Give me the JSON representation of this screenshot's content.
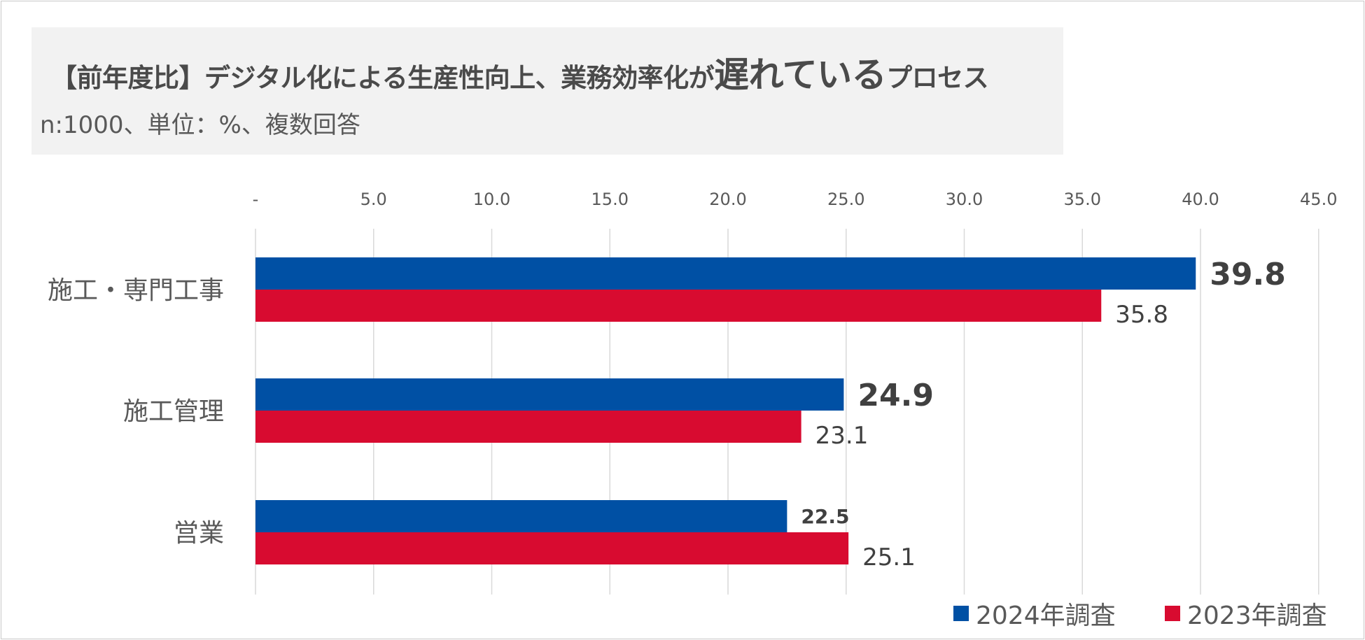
{
  "header": {
    "title_prefix": "【前年度比】デジタル化による生産性向上、業務効率化が",
    "title_emphasis": "遅れている",
    "title_suffix": "プロセス",
    "subtitle": "n:1000、単位：%、複数回答"
  },
  "colors": {
    "series_2024": "#0050a4",
    "series_2023": "#d80b30",
    "grid": "#d9d9d9"
  },
  "chart_data": {
    "type": "bar",
    "orientation": "horizontal",
    "categories": [
      "施工・専門工事",
      "施工管理",
      "営業"
    ],
    "series": [
      {
        "name": "2024年調査",
        "values": [
          39.8,
          24.9,
          22.5
        ]
      },
      {
        "name": "2023年調査",
        "values": [
          35.8,
          23.1,
          25.1
        ]
      }
    ],
    "value_labels_2024": [
      "39.8",
      "24.9",
      "22.5"
    ],
    "value_labels_2023": [
      "35.8",
      "23.1",
      "25.1"
    ],
    "xlim": [
      0,
      45
    ],
    "xticks": [
      "-",
      "5.0",
      "10.0",
      "15.0",
      "20.0",
      "25.0",
      "30.0",
      "35.0",
      "40.0",
      "45.0"
    ],
    "xaxis_position": "top",
    "grid": true,
    "legend_position": "bottom-right"
  },
  "legend": {
    "item_2024": "2024年調査",
    "item_2023": "2023年調査"
  }
}
